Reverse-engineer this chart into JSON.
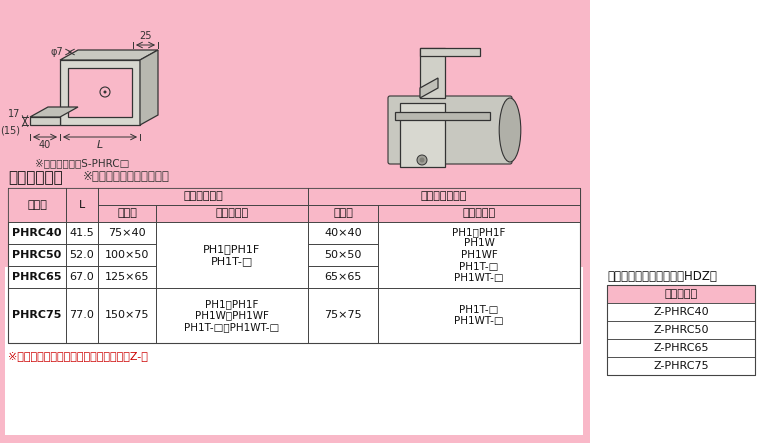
{
  "bg_color": "#f9b8c8",
  "white_bg": "#ffffff",
  "pink_header": "#f9b8c8",
  "title_text": "寸法・適合表",
  "subtitle_text": "※ステンレス鉢仕様も同様",
  "note_text": "※（　）寸法はS-PHRC□",
  "footer_note": "※溶融亜鱛めっき仕上げは、品番の頭にZ-付",
  "hdz_label": "溶融亜鱛めっき仕上げ（HDZ）",
  "order_label": "ご注文品番",
  "order_items": [
    "Z-PHRC40",
    "Z-PHRC50",
    "Z-PHRC65",
    "Z-PHRC75"
  ],
  "col_h1_hinban": "品　番",
  "col_h1_L": "L",
  "col_h1_mizo": "適合みぞ形鉢",
  "col_h1_angle": "適合等辺山形鉢",
  "col_h2_size": "サイズ",
  "col_h2_pirac": "パイラック",
  "rows": [
    {
      "code": "PHRC40",
      "L": "41.5",
      "mizo_size": "75×40",
      "angle_size": "40×40"
    },
    {
      "code": "PHRC50",
      "L": "52.0",
      "mizo_size": "100×50",
      "angle_size": "50×50"
    },
    {
      "code": "PHRC65",
      "L": "67.0",
      "mizo_size": "125×65",
      "angle_size": "65×65"
    },
    {
      "code": "PHRC75",
      "L": "77.0",
      "mizo_size": "150×75",
      "angle_size": "75×75"
    }
  ],
  "mizo_pirac_40_65": "PH1、PH1F\nPH1T-□",
  "angle_pirac_40_65": "PH1、PH1F\nPH1W\nPH1WF\nPH1T-□\nPH1WT-□",
  "mizo_pirac_75": "PH1、PH1F\nPH1W、PH1WF\nPH1T-□、PH1WT-□",
  "angle_pirac_75": "PH1T-□\nPH1WT-□",
  "dim_phi": "φ7",
  "dim_25": "25",
  "dim_17": "17",
  "dim_15": "(15)",
  "dim_40": "40",
  "dim_L": "L"
}
